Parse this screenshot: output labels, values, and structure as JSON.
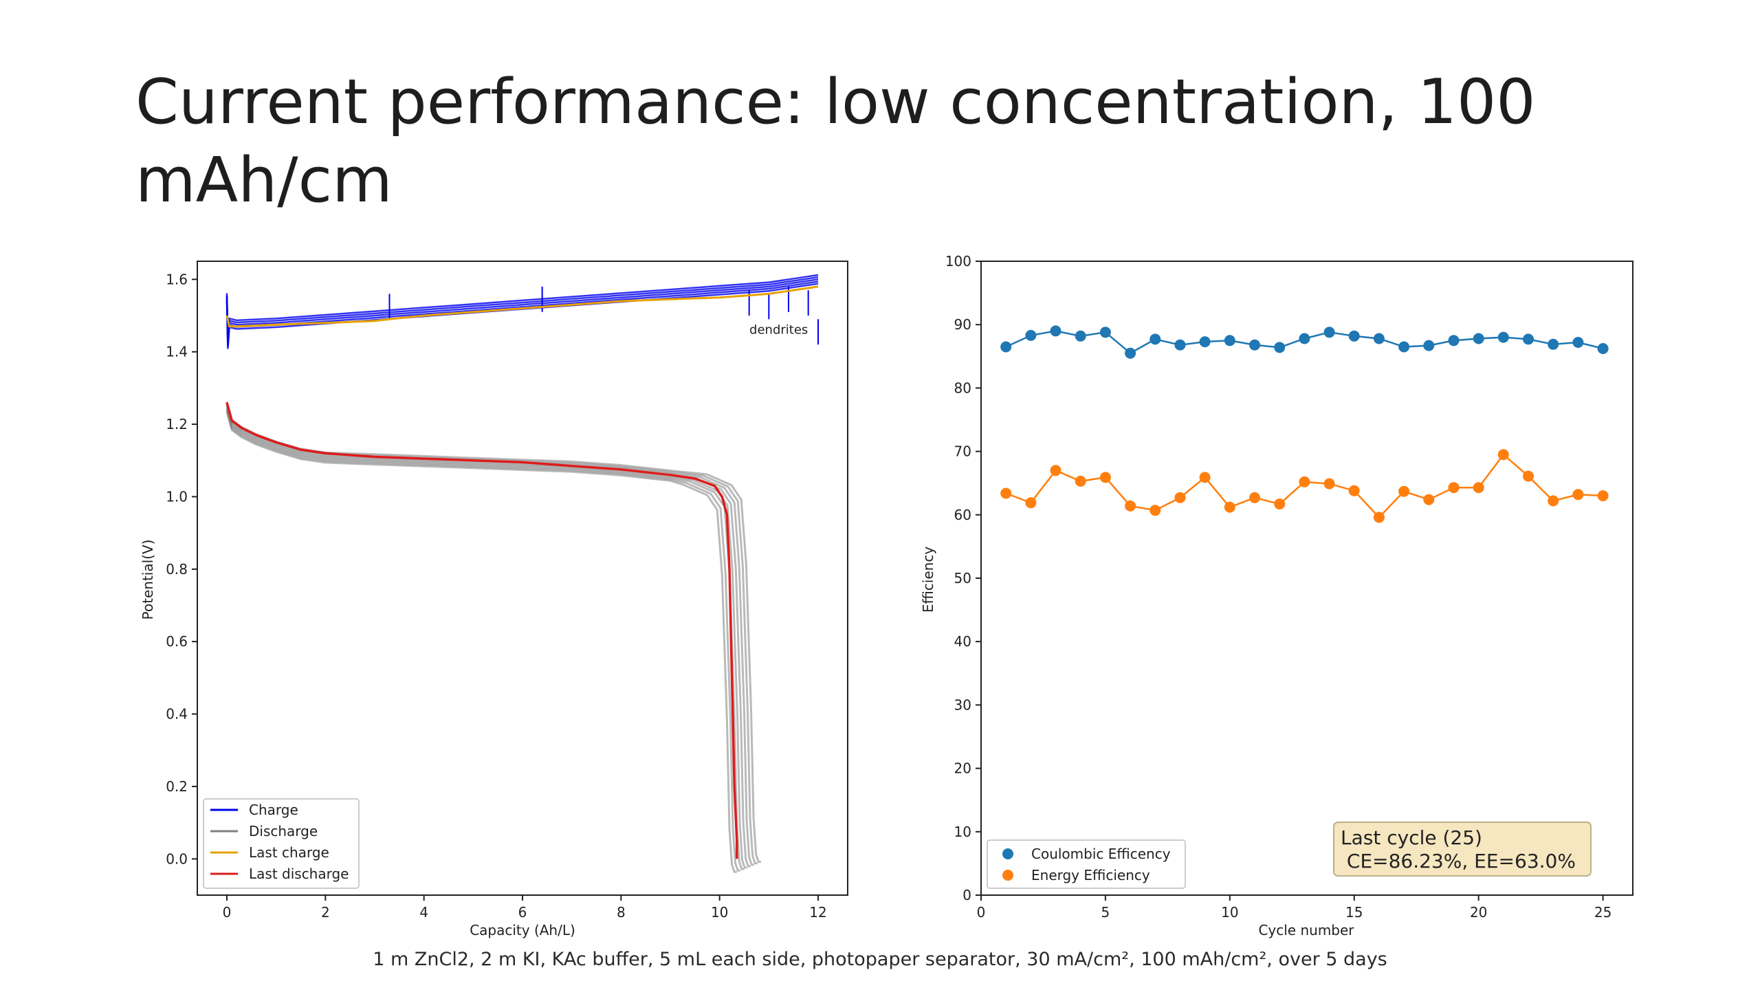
{
  "slide": {
    "title": "Current performance: low concentration, 100 mAh/cm",
    "caption": "1 m ZnCl2, 2 m KI, KAc buffer, 5 mL each side, photopaper separator, 30 mA/cm², 100 mAh/cm², over 5 days"
  },
  "chart_data": [
    {
      "type": "line",
      "xlabel": "Capacity (Ah/L)",
      "ylabel": "Potential(V)",
      "xlim": [
        -0.6,
        12.6
      ],
      "ylim": [
        -0.1,
        1.65
      ],
      "xticks": [
        0,
        2,
        4,
        6,
        8,
        10,
        12
      ],
      "xtick_labels": [
        "0",
        "2",
        "4",
        "6",
        "8",
        "10",
        "12"
      ],
      "yticks": [
        0.0,
        0.2,
        0.4,
        0.6,
        0.8,
        1.0,
        1.2,
        1.4,
        1.6
      ],
      "ytick_labels": [
        "0.0",
        "0.2",
        "0.4",
        "0.6",
        "0.8",
        "1.0",
        "1.2",
        "1.4",
        "1.6"
      ],
      "grid": false,
      "legend_position": "lower-left",
      "annotations": [
        {
          "text": "dendrites",
          "x": 11.2,
          "y": 1.45
        }
      ],
      "colors": {
        "Charge": "#0000ee",
        "Discharge": "#808080",
        "Last charge": "#e8a200",
        "Last discharge": "#dd1c1c"
      },
      "series": [
        {
          "name": "Charge",
          "x": [
            0,
            0.02,
            0.05,
            0.2,
            1,
            2,
            3,
            4,
            5,
            6,
            7,
            8,
            9,
            10,
            11,
            11.5,
            12
          ],
          "y": [
            1.55,
            1.42,
            1.48,
            1.475,
            1.48,
            1.49,
            1.5,
            1.51,
            1.52,
            1.53,
            1.54,
            1.55,
            1.56,
            1.57,
            1.58,
            1.59,
            1.6
          ]
        },
        {
          "name": "Discharge",
          "x": [
            0,
            0.1,
            0.3,
            0.6,
            1,
            1.5,
            2,
            3,
            4,
            5,
            6,
            7,
            8,
            9,
            9.5,
            10,
            10.2,
            10.3,
            10.4,
            10.45,
            10.5,
            10.55,
            10.6
          ],
          "y": [
            1.25,
            1.2,
            1.18,
            1.16,
            1.14,
            1.12,
            1.11,
            1.105,
            1.1,
            1.095,
            1.09,
            1.085,
            1.075,
            1.06,
            1.05,
            1.02,
            0.98,
            0.8,
            0.4,
            0.1,
            0.0,
            -0.02,
            -0.02
          ]
        },
        {
          "name": "Last charge",
          "x": [
            0,
            0.05,
            0.2,
            1,
            2,
            3,
            3.3,
            4,
            5,
            6,
            7,
            8,
            9,
            10,
            10.5,
            11,
            11.5,
            12
          ],
          "y": [
            1.5,
            1.47,
            1.47,
            1.475,
            1.48,
            1.485,
            1.49,
            1.5,
            1.51,
            1.52,
            1.53,
            1.54,
            1.545,
            1.55,
            1.555,
            1.56,
            1.57,
            1.58
          ]
        },
        {
          "name": "Last discharge",
          "x": [
            0,
            0.1,
            0.3,
            0.6,
            1,
            1.5,
            2,
            3,
            4,
            5,
            6,
            7,
            8,
            9,
            9.5,
            9.9,
            10.05,
            10.15,
            10.2,
            10.25,
            10.3,
            10.35,
            10.35
          ],
          "y": [
            1.26,
            1.21,
            1.19,
            1.17,
            1.15,
            1.13,
            1.12,
            1.11,
            1.105,
            1.1,
            1.095,
            1.085,
            1.075,
            1.06,
            1.05,
            1.03,
            1.0,
            0.95,
            0.8,
            0.5,
            0.2,
            0.05,
            0.0
          ]
        }
      ]
    },
    {
      "type": "line",
      "xlabel": "Cycle number",
      "ylabel": "Efficiency",
      "xlim": [
        0,
        26.2
      ],
      "ylim": [
        0,
        100
      ],
      "xticks": [
        0,
        5,
        10,
        15,
        20,
        25
      ],
      "xtick_labels": [
        "0",
        "5",
        "10",
        "15",
        "20",
        "25"
      ],
      "yticks": [
        0,
        10,
        20,
        30,
        40,
        50,
        60,
        70,
        80,
        90,
        100
      ],
      "ytick_labels": [
        "0",
        "10",
        "20",
        "30",
        "40",
        "50",
        "60",
        "70",
        "80",
        "90",
        "100"
      ],
      "grid": false,
      "legend_position": "lower-left",
      "annotation_box": {
        "line1": "Last cycle (25)",
        "line2": " CE=86.23%, EE=63.0%"
      },
      "colors": {
        "Coulombic Efficency": "#1f77b4",
        "Energy Efficiency": "#ff7f0e",
        "annotation_bg": "#f6e7c1"
      },
      "x": [
        1,
        2,
        3,
        4,
        5,
        6,
        7,
        8,
        9,
        10,
        11,
        12,
        13,
        14,
        15,
        16,
        17,
        18,
        19,
        20,
        21,
        22,
        23,
        24,
        25
      ],
      "series": [
        {
          "name": "Coulombic Efficency",
          "values": [
            86.5,
            88.3,
            89,
            88.2,
            88.8,
            85.5,
            87.7,
            86.8,
            87.3,
            87.5,
            86.8,
            86.4,
            87.8,
            88.8,
            88.2,
            87.8,
            86.5,
            86.7,
            87.5,
            87.8,
            88,
            87.7,
            86.9,
            87.2,
            86.23
          ]
        },
        {
          "name": "Energy Efficiency",
          "values": [
            63.4,
            61.9,
            67,
            65.3,
            65.9,
            61.4,
            60.7,
            62.7,
            65.9,
            61.2,
            62.7,
            61.7,
            65.2,
            64.9,
            63.8,
            59.6,
            63.7,
            62.4,
            64.3,
            64.3,
            69.5,
            66.1,
            62.2,
            63.2,
            63.0
          ]
        }
      ]
    }
  ]
}
